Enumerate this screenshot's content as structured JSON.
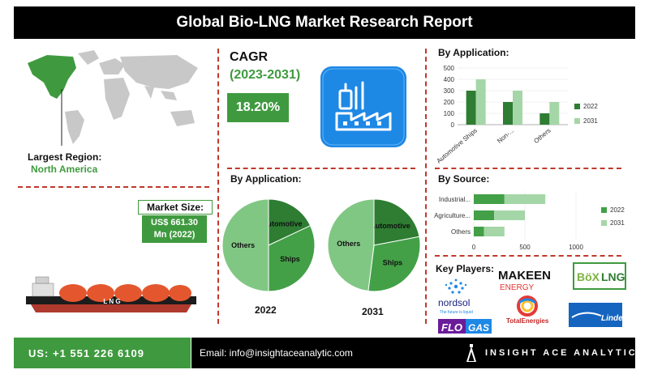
{
  "title": "Global Bio-LNG Market Research Report",
  "largest_region": {
    "label": "Largest Region:",
    "value": "North America"
  },
  "market_size": {
    "label": "Market Size:",
    "value_line1": "US$ 661.30",
    "value_line2": "Mn (2022)"
  },
  "cagr": {
    "label": "CAGR",
    "period": "(2023-2031)",
    "value": "18.20%"
  },
  "by_application_label": "By Application:",
  "by_source_label": "By Source:",
  "key_players_label": "Key Players:",
  "key_players": [
    "nordsol",
    "MAKEEN ENERGY",
    "BoxLNG",
    "TotalEnergies",
    "Linde",
    "FLOGAS"
  ],
  "logo_texts": {
    "makeen": "MAKEEN",
    "energy": "ENERGY",
    "box": "BöX",
    "lng": "LNG",
    "nordsol": "nordsol",
    "nordsol_tagline": "The future is liquid",
    "totalenergies": "TotalEnergies",
    "linde": "Linde",
    "flo": "FLO",
    "gas": "GAS"
  },
  "ship_label": "L N G",
  "footer": {
    "phone": "US: +1 551 226 6109",
    "email": "Email: info@insightaceanalytic.com",
    "brand": "INSIGHT ACE ANALYTIC"
  },
  "colors": {
    "green": "#3f9a3f",
    "dark_green": "#2e7d32",
    "light_green": "#a5d6a7",
    "red": "#c0392b"
  },
  "chart_data": [
    {
      "type": "pie",
      "year_label": "2022",
      "slices": [
        {
          "label": "Automotive",
          "value": 18
        },
        {
          "label": "Ships",
          "value": 32
        },
        {
          "label": "Others",
          "value": 50
        }
      ]
    },
    {
      "type": "pie",
      "year_label": "2031",
      "slices": [
        {
          "label": "Automotive",
          "value": 22
        },
        {
          "label": "Ships",
          "value": 30
        },
        {
          "label": "Others",
          "value": 48
        }
      ]
    },
    {
      "type": "bar",
      "orientation": "vertical",
      "categories": [
        "Automotive Ships",
        "Non-...",
        "Others"
      ],
      "series": [
        {
          "name": "2022",
          "values": [
            300,
            200,
            100
          ]
        },
        {
          "name": "2031",
          "values": [
            400,
            300,
            200
          ]
        }
      ],
      "yticks": [
        0,
        100,
        200,
        300,
        400,
        500
      ],
      "ylim": [
        0,
        500
      ],
      "legend": "right"
    },
    {
      "type": "bar",
      "orientation": "horizontal",
      "stacked": true,
      "categories": [
        "Industrial...",
        "Agriculture...",
        "Others"
      ],
      "series": [
        {
          "name": "2022",
          "values": [
            300,
            200,
            100
          ]
        },
        {
          "name": "2031",
          "values": [
            400,
            300,
            200
          ]
        }
      ],
      "xticks": [
        0,
        500,
        1000
      ],
      "xlim": [
        0,
        1000
      ],
      "legend": "right"
    }
  ]
}
